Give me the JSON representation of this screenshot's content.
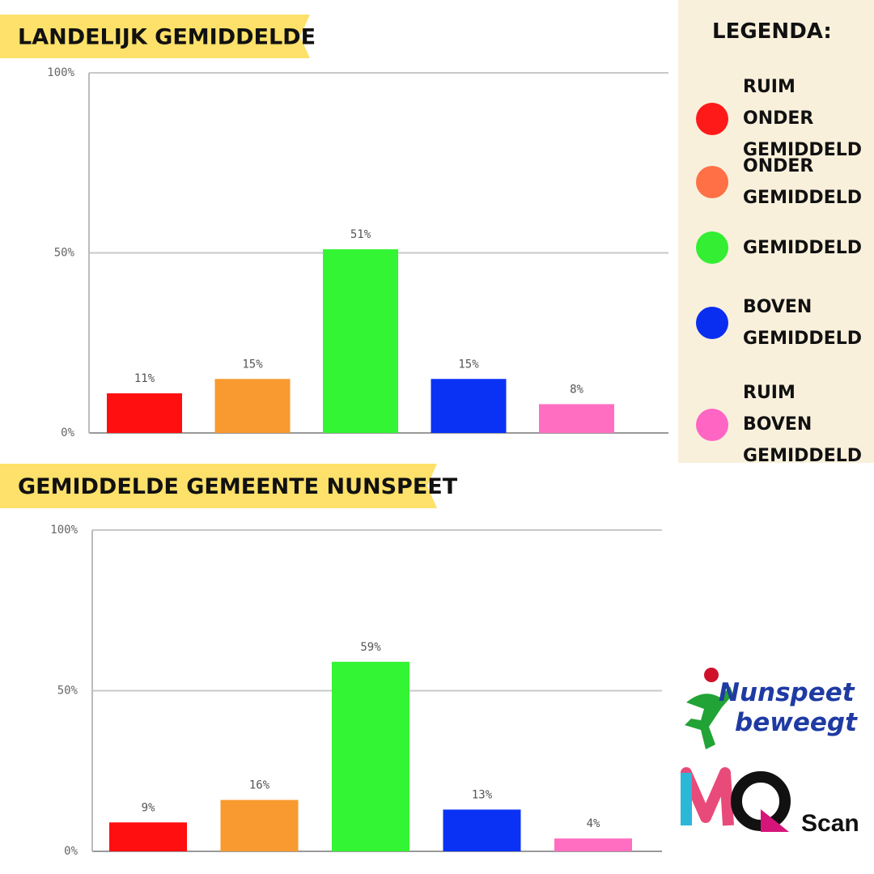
{
  "chart_data": [
    {
      "type": "bar",
      "title": "LANDELIJK GEMIDDELDE",
      "values": [
        11,
        15,
        51,
        15,
        8
      ],
      "value_labels": [
        "11%",
        "15%",
        "51%",
        "15%",
        "8%"
      ],
      "colors": [
        "#ff0f0f",
        "#f89a30",
        "#33f533",
        "#0a32f5",
        "#ff6ec0"
      ],
      "ylim": [
        0,
        100
      ],
      "yticks": [
        {
          "value": 0,
          "label": "0%"
        },
        {
          "value": 50,
          "label": "50%"
        },
        {
          "value": 100,
          "label": "100%"
        }
      ],
      "grid": true
    },
    {
      "type": "bar",
      "title": "GEMIDDELDE GEMEENTE NUNSPEET",
      "values": [
        9,
        16,
        59,
        13,
        4
      ],
      "value_labels": [
        "9%",
        "16%",
        "59%",
        "13%",
        "4%"
      ],
      "colors": [
        "#ff0f0f",
        "#f89a30",
        "#33f533",
        "#0a32f5",
        "#ff6ec0"
      ],
      "ylim": [
        0,
        100
      ],
      "yticks": [
        {
          "value": 0,
          "label": "0%"
        },
        {
          "value": 50,
          "label": "50%"
        },
        {
          "value": 100,
          "label": "100%"
        }
      ],
      "grid": true
    }
  ],
  "legend": {
    "title": "LEGENDA:",
    "items": [
      {
        "label": "RUIM ONDER GEMIDDELD",
        "color": "#ff1a1a"
      },
      {
        "label": "ONDER GEMIDDELD",
        "color": "#ff7047"
      },
      {
        "label": "GEMIDDELD",
        "color": "#33ee33"
      },
      {
        "label": "BOVEN GEMIDDELD",
        "color": "#0a2ef0"
      },
      {
        "label": "RUIM BOVEN GEMIDDELD",
        "color": "#ff66c4"
      }
    ]
  },
  "logos": {
    "nunspeet_1": "Nunspeet",
    "nunspeet_2": "beweegt",
    "mq": "MQ",
    "scan": "Scan"
  }
}
